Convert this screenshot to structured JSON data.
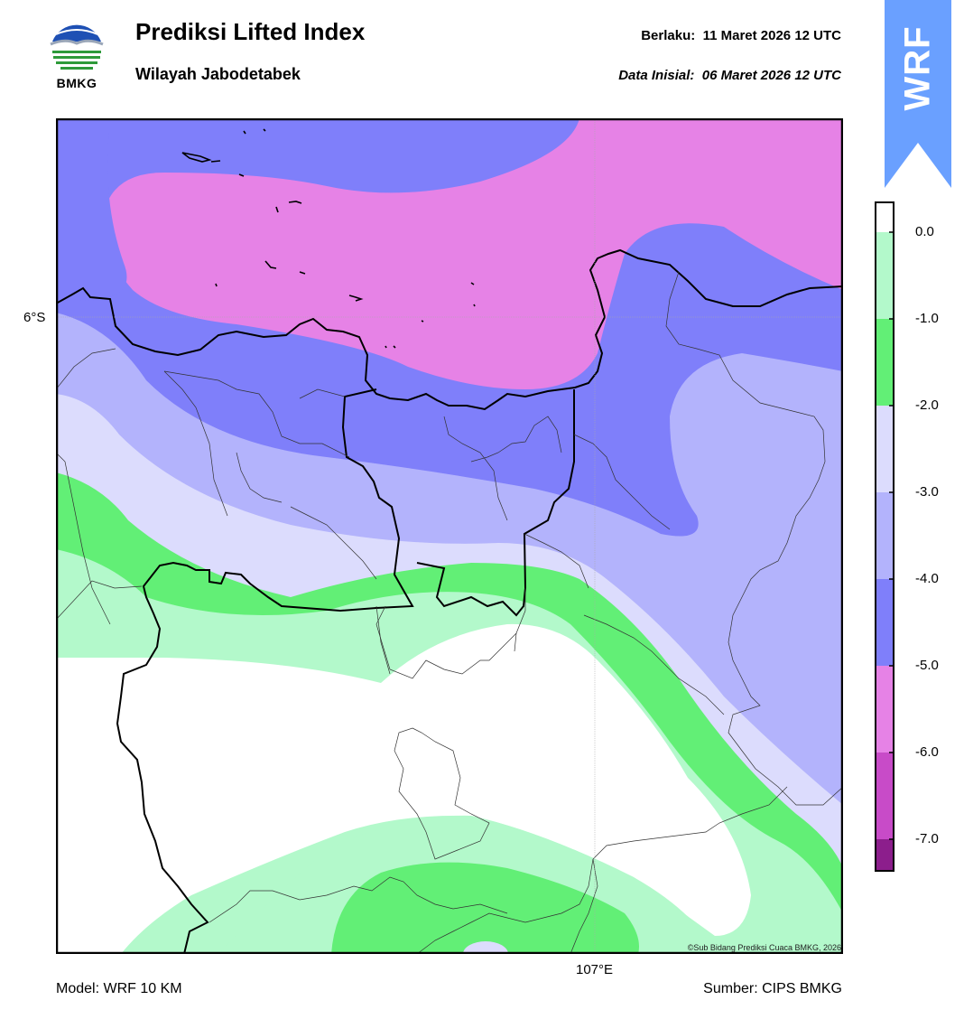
{
  "header": {
    "logo_text": "BMKG",
    "title": "Prediksi Lifted Index",
    "subtitle": "Wilayah Jabodetabek",
    "valid_label": "Berlaku:",
    "valid_time": "11 Maret 2026 12 UTC",
    "init_label": "Data Inisial:",
    "init_time": "06 Maret 2026 12 UTC",
    "ribbon_text": "WRF"
  },
  "map": {
    "lat_label": "6°S",
    "lon_label": "107°E",
    "copyright": "©Sub Bidang Prediksi Cuaca BMKG, 2026"
  },
  "legend": {
    "ticks": [
      "0.0",
      "-1.0",
      "-2.0",
      "-3.0",
      "-4.0",
      "-5.0",
      "-6.0",
      "-7.0"
    ],
    "colors": [
      "#ffffff",
      "#b3f9cb",
      "#62ef76",
      "#dcdcfd",
      "#b3b3fc",
      "#7f7ffa",
      "#e682e6",
      "#c84bc8",
      "#8c1e8c"
    ]
  },
  "footer": {
    "model": "Model: WRF 10 KM",
    "source": "Sumber: CIPS BMKG"
  }
}
